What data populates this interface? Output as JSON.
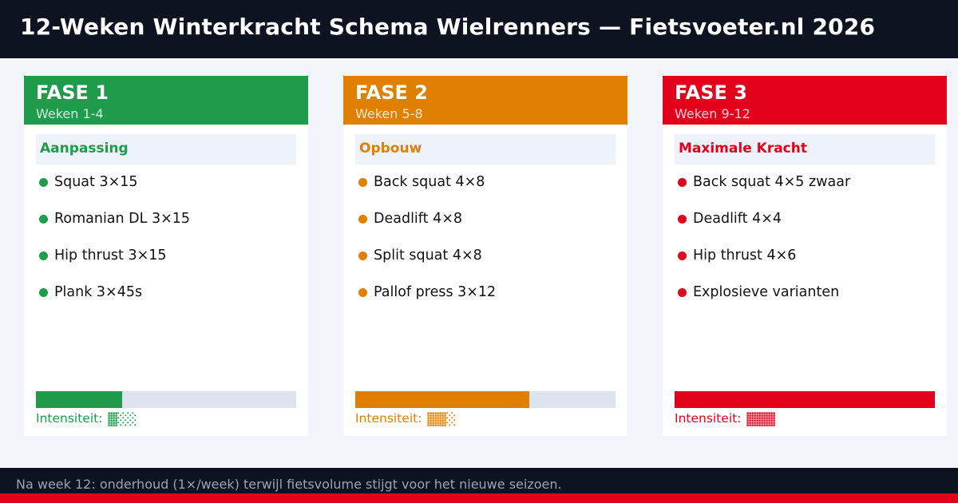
{
  "header": {
    "title": "12-Weken Winterkracht Schema Wielrenners — Fietsvoeter.nl 2026"
  },
  "phases": [
    {
      "title": "FASE 1",
      "weeks": "Weken 1-4",
      "focus": "Aanpassing",
      "color": "#1e9b4b",
      "exercises": [
        "Squat 3×15",
        "Romanian DL 3×15",
        "Hip thrust 3×15",
        "Plank 3×45s"
      ],
      "intensity_label": "Intensiteit:",
      "intensity_fraction": 0.33
    },
    {
      "title": "FASE 2",
      "weeks": "Weken 5-8",
      "focus": "Opbouw",
      "color": "#e08000",
      "exercises": [
        "Back squat 4×8",
        "Deadlift 4×8",
        "Split squat 4×8",
        "Pallof press 3×12"
      ],
      "intensity_label": "Intensiteit:",
      "intensity_fraction": 0.67
    },
    {
      "title": "FASE 3",
      "weeks": "Weken 9-12",
      "focus": "Maximale Kracht",
      "color": "#e3001b",
      "exercises": [
        "Back squat 4×5 zwaar",
        "Deadlift 4×4",
        "Hip thrust 4×6",
        "Explosieve varianten"
      ],
      "intensity_label": "Intensiteit:",
      "intensity_fraction": 1.0
    }
  ],
  "footer": {
    "text": "Na week 12: onderhoud (1×/week) terwijl fietsvolume stijgt voor het nieuwe seizoen.",
    "accent": "#e3001b"
  }
}
